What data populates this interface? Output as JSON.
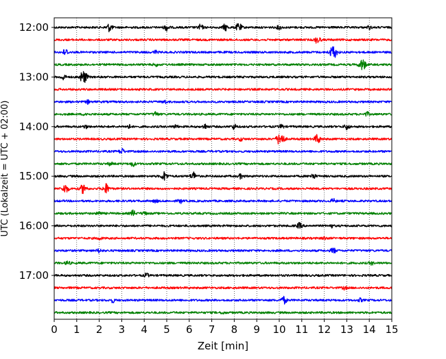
{
  "chart_data": {
    "type": "line",
    "title": "",
    "xlabel": "Zeit  [min]",
    "ylabel": "UTC (Lokalzeit = UTC + 02:00)",
    "xlim": [
      0,
      15
    ],
    "x_ticks": [
      0,
      1,
      2,
      3,
      4,
      5,
      6,
      7,
      8,
      9,
      10,
      11,
      12,
      13,
      14,
      15
    ],
    "grid": "vertical dotted lines at each minute",
    "row_interval_min": 15,
    "y_ticks": [
      {
        "row": 0,
        "label": "12:00"
      },
      {
        "row": 4,
        "label": "13:00"
      },
      {
        "row": 8,
        "label": "14:00"
      },
      {
        "row": 12,
        "label": "15:00"
      },
      {
        "row": 16,
        "label": "16:00"
      },
      {
        "row": 20,
        "label": "17:00"
      }
    ],
    "trace_colors": [
      "#000000",
      "#ff0000",
      "#0000ff",
      "#008000"
    ],
    "rows": [
      {
        "events": [
          [
            2.45,
            1.0
          ],
          [
            5.0,
            0.8
          ],
          [
            6.5,
            0.7
          ],
          [
            7.6,
            0.8
          ],
          [
            8.2,
            1.0
          ],
          [
            10.0,
            0.5
          ],
          [
            14.0,
            0.4
          ]
        ]
      },
      {
        "events": [
          [
            11.7,
            0.9
          ]
        ]
      },
      {
        "events": [
          [
            0.5,
            0.8
          ],
          [
            4.5,
            0.4
          ],
          [
            12.4,
            1.6
          ]
        ]
      },
      {
        "events": [
          [
            4.5,
            0.4
          ],
          [
            13.7,
            1.4
          ]
        ]
      },
      {
        "events": [
          [
            1.3,
            1.6
          ],
          [
            0.4,
            0.7
          ]
        ]
      },
      {
        "events": []
      },
      {
        "events": [
          [
            1.5,
            0.4
          ],
          [
            4.9,
            0.4
          ]
        ]
      },
      {
        "events": [
          [
            1.4,
            0.4
          ],
          [
            4.5,
            0.6
          ],
          [
            13.9,
            0.5
          ]
        ]
      },
      {
        "events": [
          [
            1.4,
            0.4
          ],
          [
            3.3,
            0.5
          ],
          [
            5.4,
            0.4
          ],
          [
            6.7,
            0.6
          ],
          [
            8.0,
            0.6
          ],
          [
            10.1,
            0.5
          ],
          [
            13.0,
            0.7
          ]
        ]
      },
      {
        "events": [
          [
            10.05,
            1.7
          ],
          [
            11.7,
            1.1
          ],
          [
            8.3,
            0.4
          ]
        ]
      },
      {
        "events": [
          [
            3.0,
            0.7
          ]
        ]
      },
      {
        "events": [
          [
            2.5,
            0.4
          ],
          [
            3.5,
            0.6
          ]
        ]
      },
      {
        "events": [
          [
            4.9,
            1.1
          ],
          [
            6.2,
            1.0
          ],
          [
            8.3,
            0.6
          ],
          [
            11.5,
            0.7
          ]
        ]
      },
      {
        "events": [
          [
            0.5,
            1.1
          ],
          [
            1.3,
            1.2
          ],
          [
            2.3,
            1.2
          ]
        ]
      },
      {
        "events": [
          [
            4.5,
            0.4
          ],
          [
            5.6,
            0.5
          ],
          [
            12.4,
            0.5
          ]
        ]
      },
      {
        "events": [
          [
            2.0,
            0.5
          ],
          [
            3.5,
            0.7
          ],
          [
            4.0,
            0.4
          ]
        ]
      },
      {
        "events": [
          [
            10.9,
            0.7
          ],
          [
            12.3,
            0.4
          ]
        ]
      },
      {
        "events": [
          [
            2.0,
            0.4
          ],
          [
            12.0,
            0.4
          ]
        ]
      },
      {
        "events": [
          [
            2.0,
            0.5
          ],
          [
            12.4,
            0.7
          ]
        ]
      },
      {
        "events": [
          [
            0.6,
            0.5
          ],
          [
            14.1,
            0.4
          ]
        ]
      },
      {
        "events": [
          [
            4.1,
            0.5
          ]
        ]
      },
      {
        "events": [
          [
            12.9,
            0.4
          ]
        ]
      },
      {
        "events": [
          [
            2.6,
            0.5
          ],
          [
            10.2,
            0.9
          ],
          [
            13.6,
            0.4
          ]
        ]
      },
      {
        "events": [
          [
            7.5,
            0.3
          ]
        ]
      }
    ]
  }
}
